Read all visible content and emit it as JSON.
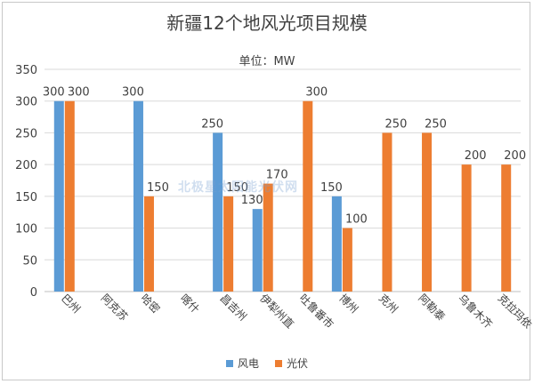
{
  "chart_data": {
    "type": "bar",
    "title": "新疆12个地风光项目规模",
    "subtitle": "单位：MW",
    "categories": [
      "巴州",
      "阿克苏",
      "哈密",
      "喀什",
      "昌吉州",
      "伊犁州直",
      "吐鲁番市",
      "博州",
      "克州",
      "阿勒泰",
      "乌鲁木齐",
      "克拉玛依"
    ],
    "series": [
      {
        "name": "风电",
        "color": "#5b9bd5",
        "values": [
          300,
          null,
          300,
          null,
          250,
          130,
          null,
          150,
          null,
          null,
          null,
          null
        ]
      },
      {
        "name": "光伏",
        "color": "#ed7d31",
        "values": [
          300,
          null,
          150,
          null,
          150,
          170,
          300,
          100,
          250,
          250,
          200,
          200
        ]
      }
    ],
    "ylim": [
      0,
      350
    ],
    "yticks": [
      0,
      50,
      100,
      150,
      200,
      250,
      300,
      350
    ],
    "grid": true,
    "legend": "bottom"
  },
  "watermark": "北极星太阳能光伏网"
}
